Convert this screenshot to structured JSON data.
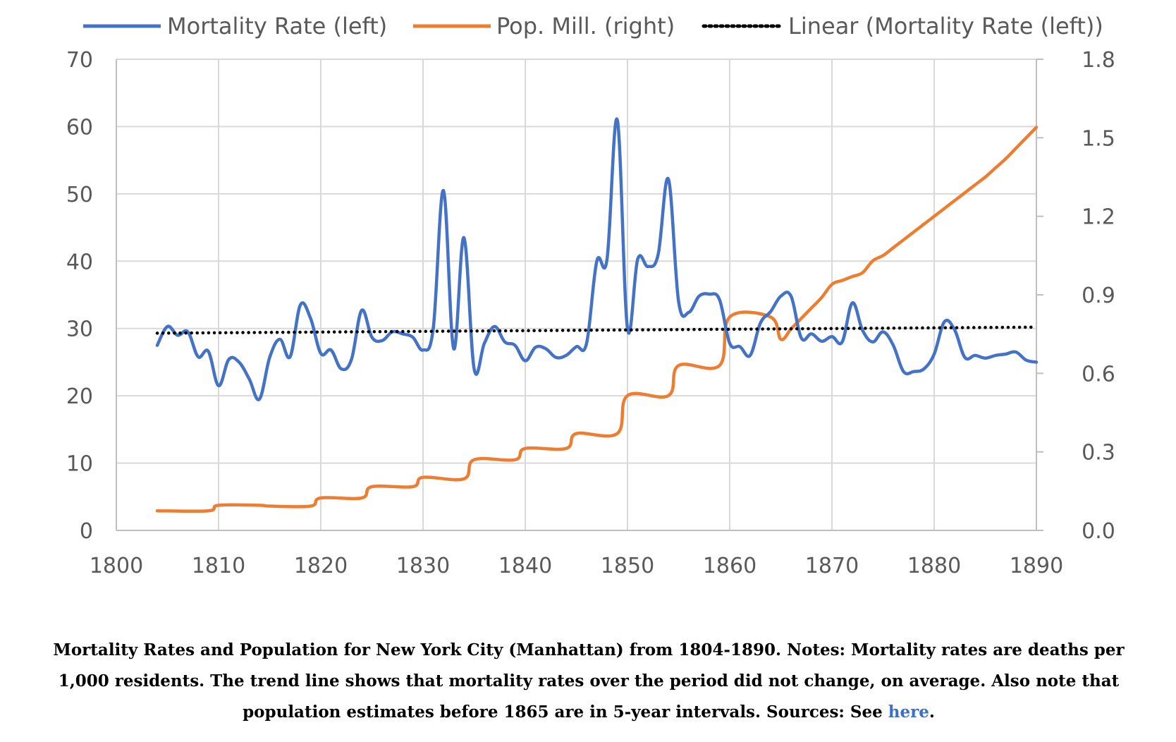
{
  "chart_data": {
    "type": "line",
    "xlim": [
      1800,
      1890
    ],
    "ylim_left": [
      0,
      70
    ],
    "ylim_right": [
      0,
      1.8
    ],
    "x_ticks": [
      "1800",
      "1810",
      "1820",
      "1830",
      "1840",
      "1850",
      "1860",
      "1870",
      "1880",
      "1890"
    ],
    "y_left_ticks": [
      "0",
      "10",
      "20",
      "30",
      "40",
      "50",
      "60",
      "70"
    ],
    "y_right_ticks": [
      "0.0",
      "0.3",
      "0.6",
      "0.9",
      "1.2",
      "1.5",
      "1.8"
    ],
    "grid": true,
    "legend_position": "top",
    "legend": [
      "Mortality Rate (left)",
      "Pop. Mill. (right)",
      "Linear (Mortality Rate (left))"
    ],
    "colors": {
      "mortality": "#4472c4",
      "population": "#ed7d31",
      "trend": "#000000",
      "grid": "#d9d9d9",
      "axis": "#bfbfbf"
    },
    "series": [
      {
        "name": "Mortality Rate (left)",
        "axis": "left",
        "x": [
          1804,
          1805,
          1806,
          1807,
          1808,
          1809,
          1810,
          1811,
          1812,
          1813,
          1814,
          1815,
          1816,
          1817,
          1818,
          1819,
          1820,
          1821,
          1822,
          1823,
          1824,
          1825,
          1826,
          1827,
          1828,
          1829,
          1830,
          1831,
          1832,
          1833,
          1834,
          1835,
          1836,
          1837,
          1838,
          1839,
          1840,
          1841,
          1842,
          1843,
          1844,
          1845,
          1846,
          1847,
          1848,
          1849,
          1850,
          1851,
          1852,
          1853,
          1854,
          1855,
          1856,
          1857,
          1858,
          1859,
          1860,
          1861,
          1862,
          1863,
          1864,
          1865,
          1866,
          1867,
          1868,
          1869,
          1870,
          1871,
          1872,
          1873,
          1874,
          1875,
          1876,
          1877,
          1878,
          1879,
          1880,
          1881,
          1882,
          1883,
          1884,
          1885,
          1886,
          1887,
          1888,
          1889,
          1890
        ],
        "values": [
          27.5,
          30.3,
          29,
          29.5,
          25.8,
          26.6,
          21.5,
          25.4,
          25,
          22.5,
          19.5,
          25.7,
          28.4,
          25.8,
          33.5,
          31.5,
          26.3,
          26.8,
          24,
          25.4,
          32.7,
          28.7,
          28.2,
          29.5,
          29.2,
          28.7,
          26.8,
          30,
          50.5,
          27,
          43.5,
          24,
          27.8,
          30.3,
          28,
          27.5,
          25.2,
          27.2,
          27,
          25.7,
          26,
          27.3,
          27.8,
          40,
          40.3,
          61,
          30,
          40.3,
          39.2,
          41,
          52.2,
          34,
          32.4,
          34.8,
          35.1,
          34.3,
          27.8,
          27.3,
          26,
          30.8,
          32.5,
          34.8,
          34.8,
          28.6,
          29.2,
          28.1,
          28.8,
          28,
          33.8,
          29.7,
          28,
          29.5,
          27.5,
          23.6,
          23.6,
          24,
          26.2,
          31,
          29.8,
          25.7,
          26,
          25.6,
          26,
          26.2,
          26.5,
          25.3,
          25
        ]
      },
      {
        "name": "Pop. Mill. (right)",
        "axis": "right",
        "x": [
          1804,
          1809,
          1810,
          1814,
          1815,
          1819,
          1820,
          1824,
          1825,
          1829,
          1830,
          1834,
          1835,
          1839,
          1840,
          1844,
          1845,
          1849,
          1850,
          1854,
          1855,
          1859,
          1860,
          1864,
          1865,
          1866,
          1867,
          1868,
          1869,
          1870,
          1871,
          1872,
          1873,
          1874,
          1875,
          1876,
          1877,
          1878,
          1879,
          1880,
          1881,
          1882,
          1883,
          1884,
          1885,
          1886,
          1887,
          1888,
          1889,
          1890
        ],
        "values": [
          0.075,
          0.075,
          0.096,
          0.096,
          0.093,
          0.093,
          0.124,
          0.124,
          0.167,
          0.167,
          0.203,
          0.197,
          0.27,
          0.27,
          0.313,
          0.313,
          0.37,
          0.37,
          0.515,
          0.515,
          0.63,
          0.63,
          0.815,
          0.815,
          0.73,
          0.77,
          0.81,
          0.85,
          0.89,
          0.94,
          0.955,
          0.97,
          0.985,
          1.03,
          1.05,
          1.08,
          1.11,
          1.14,
          1.17,
          1.2,
          1.23,
          1.26,
          1.29,
          1.32,
          1.35,
          1.385,
          1.42,
          1.46,
          1.5,
          1.54
        ]
      },
      {
        "name": "Linear (Mortality Rate (left))",
        "axis": "left",
        "x": [
          1804,
          1890
        ],
        "values": [
          29.3,
          30.2
        ]
      }
    ]
  },
  "caption": {
    "text": "Mortality Rates and Population for New York City (Manhattan) from 1804-1890. Notes: Mortality rates are deaths per 1,000 residents. The trend line shows that mortality rates over the period did not change, on average. Also note that population estimates before 1865 are in 5-year intervals. Sources: See ",
    "link_text": "here",
    "end": "."
  }
}
